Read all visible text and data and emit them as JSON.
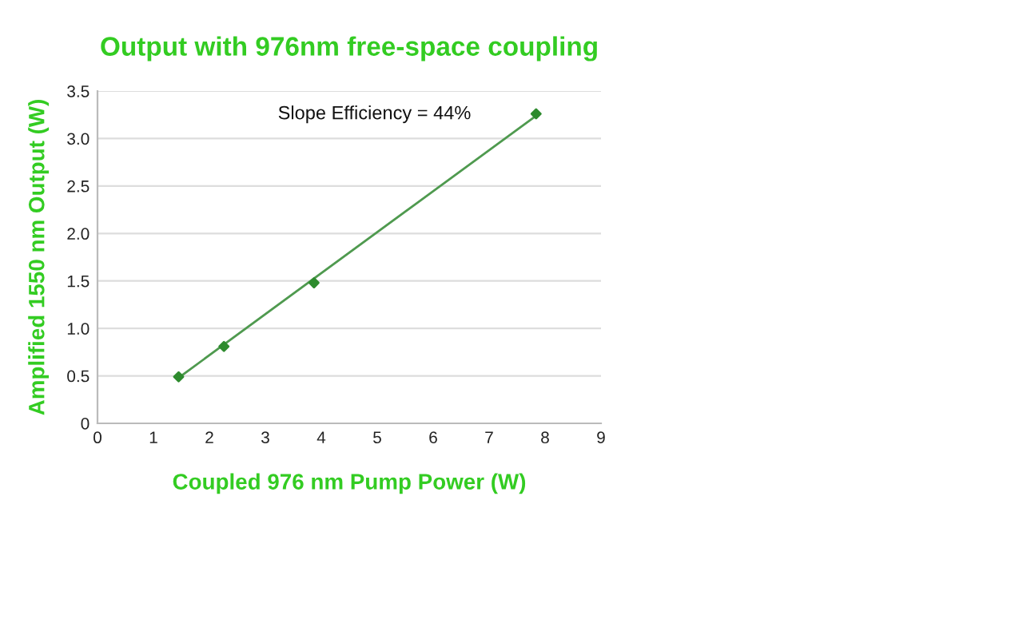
{
  "chart_data": {
    "type": "scatter",
    "title": "Output with 976nm free-space coupling",
    "xlabel": "Coupled 976 nm Pump Power (W)",
    "ylabel": "Amplified 1550 nm Output (W)",
    "series": [
      {
        "color": "#2e8b2e",
        "marker": "diamond",
        "x": [
          1.45,
          2.26,
          3.87,
          7.84
        ],
        "values": [
          0.49,
          0.81,
          1.48,
          3.26
        ]
      },
      {
        "type": "line",
        "color": "#4f9a4f",
        "x": [
          1.45,
          7.84
        ],
        "values": [
          0.48,
          3.24
        ]
      }
    ],
    "annotations": [
      "Slope Efficiency = 44%"
    ],
    "xlim": [
      0,
      9
    ],
    "xticks": [
      0,
      1,
      2,
      3,
      4,
      5,
      6,
      7,
      8,
      9
    ],
    "ylim": [
      0,
      3.5
    ],
    "yticks": [
      0,
      0.5,
      {
        "value": 1,
        "label": "1.0"
      },
      1.5,
      {
        "value": 2,
        "label": "2.0"
      },
      2.5,
      {
        "value": 3,
        "label": "3.0"
      },
      3.5
    ],
    "grid": "y"
  }
}
